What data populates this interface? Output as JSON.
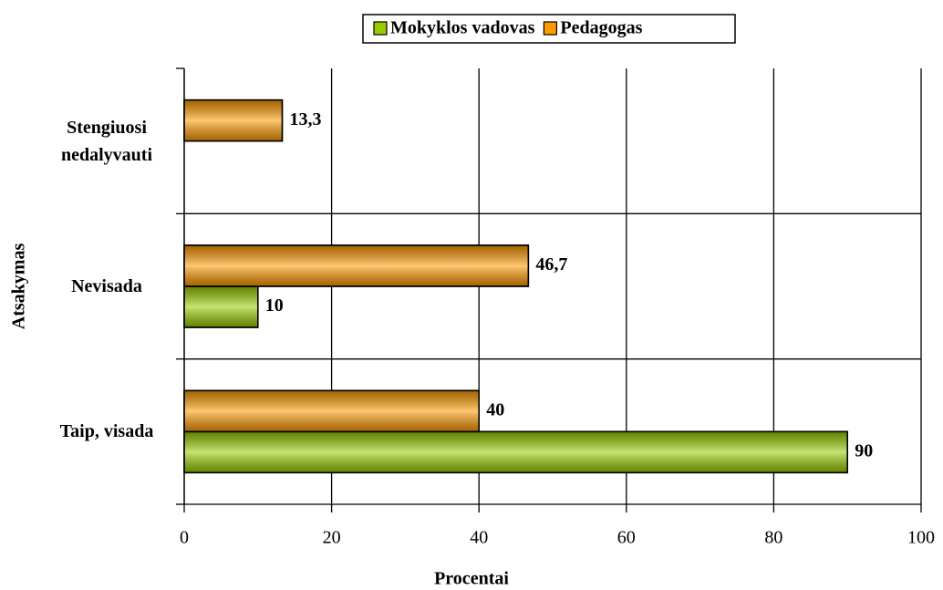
{
  "chart_data": {
    "type": "hbar",
    "xlabel": "Procentai",
    "ylabel": "Atsakymas",
    "categories": [
      "Taip, visada",
      "Nevisada",
      "Stengiuosi nedalyvauti"
    ],
    "series": [
      {
        "name": "Mokyklos vadovas",
        "color": "#99cc00",
        "values": [
          90,
          10,
          null
        ],
        "value_labels": [
          "90",
          "10",
          null
        ]
      },
      {
        "name": "Pedagogas",
        "color": "#ff9900",
        "values": [
          40,
          46.7,
          13.3
        ],
        "value_labels": [
          "40",
          "46,7",
          "13,3"
        ]
      }
    ],
    "xlim": [
      0,
      100
    ],
    "xticks": [
      0,
      20,
      40,
      60,
      80,
      100
    ],
    "grid": true,
    "legend": "top"
  }
}
